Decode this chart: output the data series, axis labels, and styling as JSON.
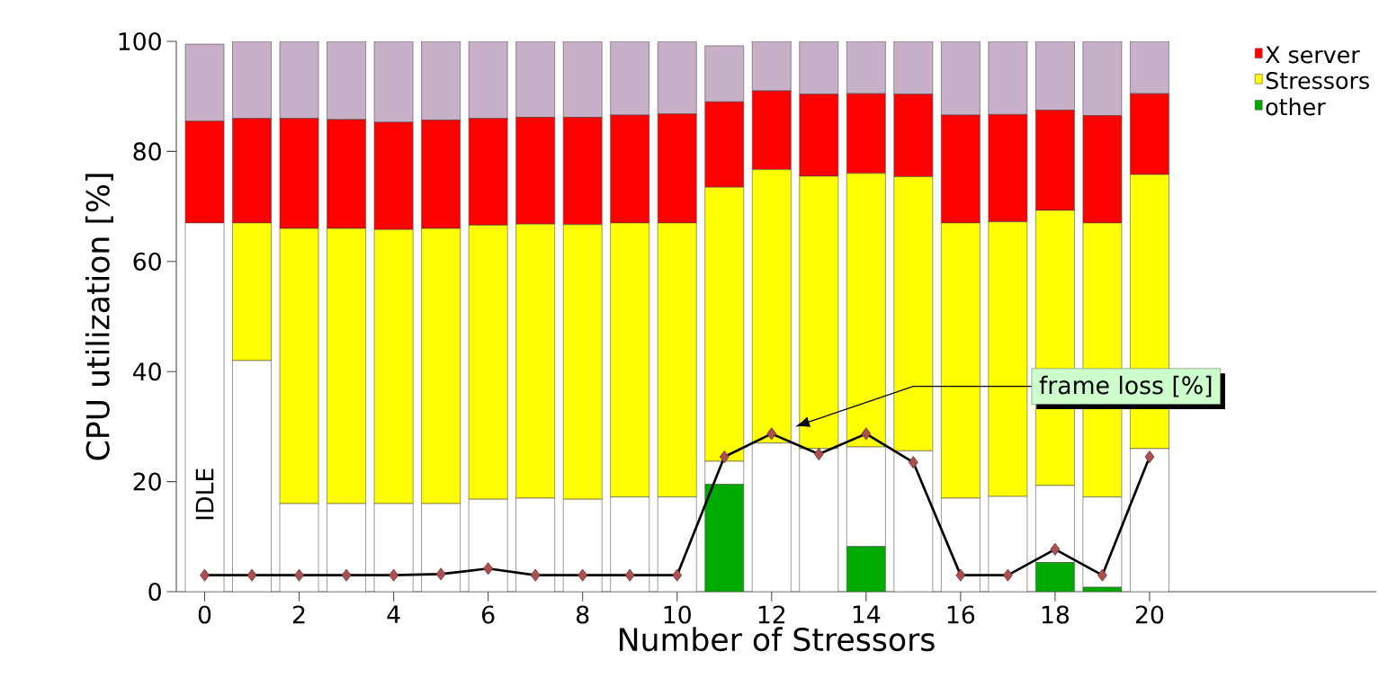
{
  "chart_data": {
    "type": "bar",
    "stacked": true,
    "xlabel": "Number of Stressors",
    "ylabel": "CPU utilization [%]",
    "x": [
      0,
      1,
      2,
      3,
      4,
      5,
      6,
      7,
      8,
      9,
      10,
      11,
      12,
      13,
      14,
      15,
      16,
      17,
      18,
      19,
      20
    ],
    "xlim": [
      -0.6,
      24.8
    ],
    "xticks": [
      0,
      2,
      4,
      6,
      8,
      10,
      12,
      14,
      16,
      18,
      20
    ],
    "ylim": [
      0,
      100
    ],
    "yticks": [
      0,
      20,
      40,
      60,
      80,
      100
    ],
    "grid": false,
    "legend": "top right",
    "series": [
      {
        "name": "other",
        "color": "#00aa00",
        "values": [
          0,
          0,
          0,
          0,
          0,
          0,
          0,
          0,
          0,
          0,
          0,
          19.5,
          0,
          0,
          8.2,
          0,
          0,
          0,
          5.3,
          0.8,
          0
        ]
      },
      {
        "color": "#ffffff",
        "values": [
          67,
          42,
          16,
          16,
          16,
          16,
          16.8,
          17,
          16.8,
          17.2,
          17.2,
          4.2,
          27,
          26,
          18.1,
          25.6,
          17,
          17.3,
          14,
          16.4,
          26
        ]
      },
      {
        "name": "Stressors",
        "color": "#ffff00",
        "values": [
          0,
          25,
          50,
          50,
          49.8,
          50,
          49.8,
          49.8,
          49.9,
          49.8,
          49.8,
          49.8,
          49.7,
          49.5,
          49.7,
          49.8,
          50,
          49.9,
          50,
          49.8,
          49.8
        ]
      },
      {
        "name": "X server",
        "color": "#ff0000",
        "values": [
          18.5,
          19,
          20,
          19.8,
          19.5,
          19.7,
          19.4,
          19.4,
          19.5,
          19.6,
          19.8,
          15.5,
          14.3,
          14.9,
          14.5,
          15,
          19.6,
          19.5,
          18.2,
          19.5,
          14.7
        ]
      },
      {
        "color": "#c8b0c8",
        "values": [
          14,
          14,
          14,
          14.2,
          14.7,
          14.3,
          14,
          13.8,
          13.8,
          13.4,
          13.2,
          10.2,
          9,
          9.6,
          9.5,
          9.6,
          13.4,
          13.3,
          12.5,
          13.5,
          9.5
        ]
      },
      {
        "type": "line",
        "name": "frame loss [%]",
        "color": "#000000",
        "marker": "diamond",
        "values": [
          3,
          3,
          3,
          3,
          3,
          3.2,
          4.2,
          3,
          3,
          3,
          3,
          24.5,
          28.7,
          25,
          28.7,
          23.5,
          3,
          3,
          7.7,
          3,
          24.5
        ]
      }
    ],
    "annotations": [
      "IDLE"
    ]
  }
}
